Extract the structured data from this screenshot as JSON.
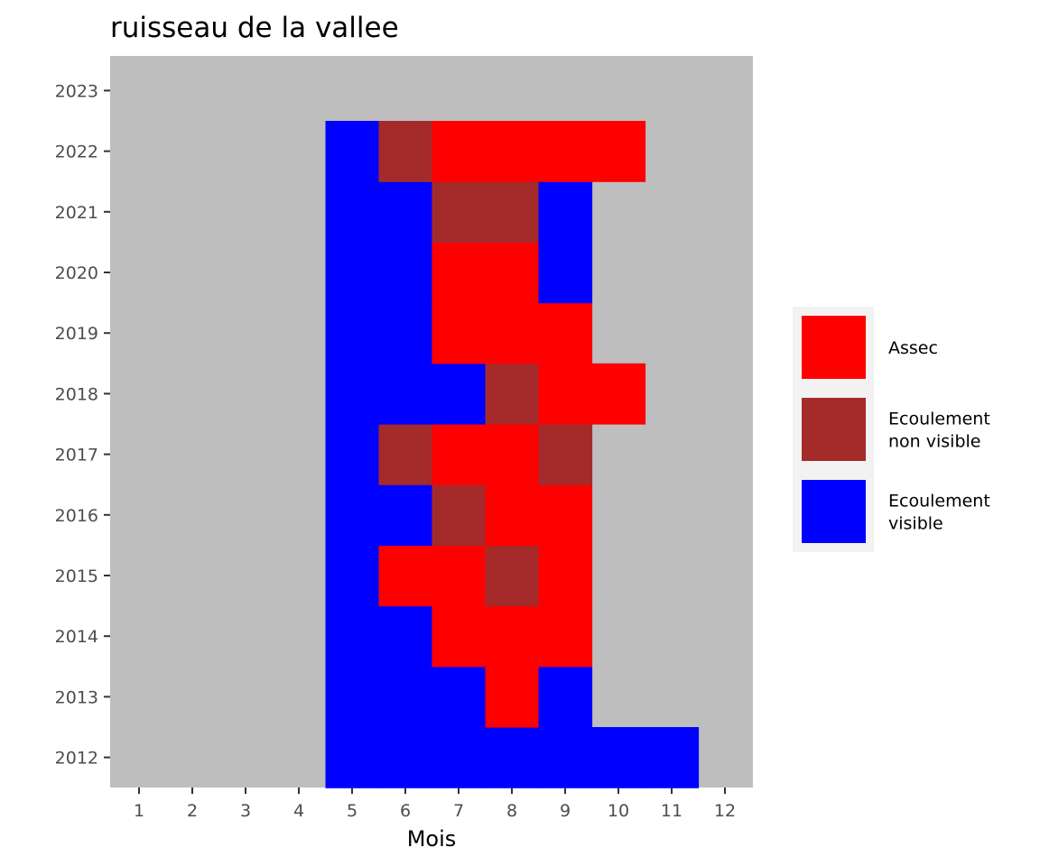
{
  "chart_data": {
    "type": "heatmap",
    "title": "ruisseau de la vallee",
    "xlabel": "Mois",
    "ylabel": "",
    "x_categories": [
      "1",
      "2",
      "3",
      "4",
      "5",
      "6",
      "7",
      "8",
      "9",
      "10",
      "11",
      "12"
    ],
    "y_categories": [
      "2012",
      "2013",
      "2014",
      "2015",
      "2016",
      "2017",
      "2018",
      "2019",
      "2020",
      "2021",
      "2022",
      "2023"
    ],
    "legend": {
      "position": "right",
      "entries": [
        {
          "key": "Assec",
          "label_lines": [
            "Assec"
          ],
          "color": "#FF0000"
        },
        {
          "key": "Ecoulement non visible",
          "label_lines": [
            "Ecoulement",
            "non visible"
          ],
          "color": "#A52A2A"
        },
        {
          "key": "Ecoulement visible",
          "label_lines": [
            "Ecoulement",
            "visible"
          ],
          "color": "#0000FF"
        }
      ]
    },
    "cells": [
      {
        "year": "2012",
        "months": {
          "5": "Ecoulement visible",
          "6": "Ecoulement visible",
          "7": "Ecoulement visible",
          "8": "Ecoulement visible",
          "9": "Ecoulement visible",
          "10": "Ecoulement visible",
          "11": "Ecoulement visible"
        }
      },
      {
        "year": "2013",
        "months": {
          "5": "Ecoulement visible",
          "6": "Ecoulement visible",
          "7": "Ecoulement visible",
          "8": "Assec",
          "9": "Ecoulement visible"
        }
      },
      {
        "year": "2014",
        "months": {
          "5": "Ecoulement visible",
          "6": "Ecoulement visible",
          "7": "Assec",
          "8": "Assec",
          "9": "Assec"
        }
      },
      {
        "year": "2015",
        "months": {
          "5": "Ecoulement visible",
          "6": "Assec",
          "7": "Assec",
          "8": "Ecoulement non visible",
          "9": "Assec"
        }
      },
      {
        "year": "2016",
        "months": {
          "5": "Ecoulement visible",
          "6": "Ecoulement visible",
          "7": "Ecoulement non visible",
          "8": "Assec",
          "9": "Assec"
        }
      },
      {
        "year": "2017",
        "months": {
          "5": "Ecoulement visible",
          "6": "Ecoulement non visible",
          "7": "Assec",
          "8": "Assec",
          "9": "Ecoulement non visible"
        }
      },
      {
        "year": "2018",
        "months": {
          "5": "Ecoulement visible",
          "6": "Ecoulement visible",
          "7": "Ecoulement visible",
          "8": "Ecoulement non visible",
          "9": "Assec",
          "10": "Assec"
        }
      },
      {
        "year": "2019",
        "months": {
          "5": "Ecoulement visible",
          "6": "Ecoulement visible",
          "7": "Assec",
          "8": "Assec",
          "9": "Assec"
        }
      },
      {
        "year": "2020",
        "months": {
          "5": "Ecoulement visible",
          "6": "Ecoulement visible",
          "7": "Assec",
          "8": "Assec",
          "9": "Ecoulement visible"
        }
      },
      {
        "year": "2021",
        "months": {
          "5": "Ecoulement visible",
          "6": "Ecoulement visible",
          "7": "Ecoulement non visible",
          "8": "Ecoulement non visible",
          "9": "Ecoulement visible"
        }
      },
      {
        "year": "2022",
        "months": {
          "5": "Ecoulement visible",
          "6": "Ecoulement non visible",
          "7": "Assec",
          "8": "Assec",
          "9": "Assec",
          "10": "Assec"
        }
      },
      {
        "year": "2023",
        "months": {}
      }
    ],
    "panel_background": "#BEBEBE",
    "legend_background": "#F2F2F2",
    "grid": false
  }
}
